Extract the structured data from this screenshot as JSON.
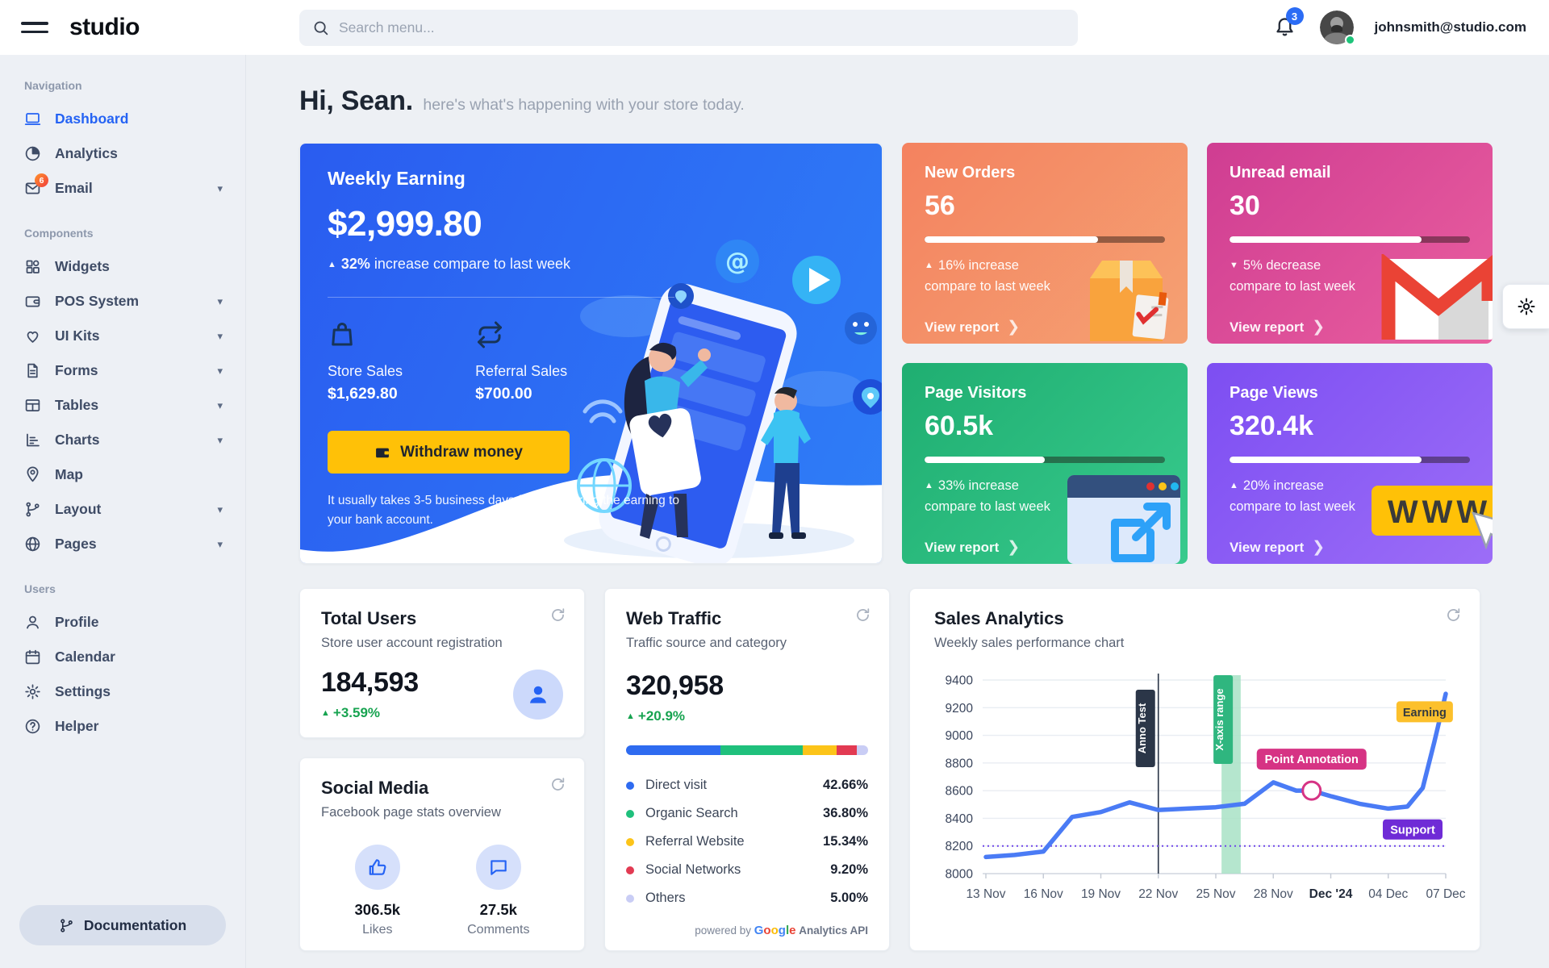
{
  "topbar": {
    "brand": "studio",
    "search_placeholder": "Search menu...",
    "notification_count": "3",
    "user_email": "johnsmith@studio.com"
  },
  "sidebar": {
    "sections": [
      {
        "label": "Navigation",
        "items": [
          {
            "label": "Dashboard",
            "icon": "laptop",
            "active": true
          },
          {
            "label": "Analytics",
            "icon": "pie"
          },
          {
            "label": "Email",
            "icon": "mail",
            "badge": "6",
            "caret": true
          }
        ]
      },
      {
        "label": "Components",
        "items": [
          {
            "label": "Widgets",
            "icon": "widgets"
          },
          {
            "label": "POS System",
            "icon": "wallet",
            "caret": true
          },
          {
            "label": "UI Kits",
            "icon": "heart",
            "caret": true
          },
          {
            "label": "Forms",
            "icon": "file",
            "caret": true
          },
          {
            "label": "Tables",
            "icon": "table",
            "caret": true
          },
          {
            "label": "Charts",
            "icon": "chart",
            "caret": true
          },
          {
            "label": "Map",
            "icon": "pin"
          },
          {
            "label": "Layout",
            "icon": "branch",
            "caret": true
          },
          {
            "label": "Pages",
            "icon": "globe",
            "caret": true
          }
        ]
      },
      {
        "label": "Users",
        "items": [
          {
            "label": "Profile",
            "icon": "user"
          },
          {
            "label": "Calendar",
            "icon": "calendar"
          },
          {
            "label": "Settings",
            "icon": "gear"
          },
          {
            "label": "Helper",
            "icon": "question"
          }
        ]
      }
    ],
    "documentation_label": "Documentation"
  },
  "page": {
    "greeting": "Hi, Sean.",
    "greeting_sub": "here's what's happening with your store today."
  },
  "weekly_earning": {
    "title": "Weekly Earning",
    "amount": "$2,999.80",
    "delta_arrow": "▲",
    "delta_pct": "32%",
    "delta_text": " increase compare to last week",
    "store_sales_label": "Store Sales",
    "store_sales_value": "$1,629.80",
    "referral_label": "Referral Sales",
    "referral_value": "$700.00",
    "button_label": "Withdraw money",
    "note": "It usually takes 3-5 business days for transferring the earning to your bank account.",
    "accent_color": "#2a5cf0"
  },
  "mini_cards": [
    {
      "title": "New Orders",
      "value": "56",
      "progress_pct": 72,
      "arrow": "▲",
      "delta_line1": "16% increase",
      "delta_line2": "compare to last week",
      "link_label": "View report",
      "illustration": "package",
      "gradient": [
        "#f4825f",
        "#f5a173"
      ]
    },
    {
      "title": "Unread email",
      "value": "30",
      "progress_pct": 80,
      "arrow": "▼",
      "delta_line1": "5% decrease",
      "delta_line2": "compare to last week",
      "link_label": "View report",
      "illustration": "gmail",
      "gradient": [
        "#cf3d92",
        "#ea5f9f"
      ]
    },
    {
      "title": "Page Visitors",
      "value": "60.5k",
      "progress_pct": 50,
      "arrow": "▲",
      "delta_line1": "33% increase",
      "delta_line2": "compare to last week",
      "link_label": "View report",
      "illustration": "browser",
      "gradient": [
        "#1fae71",
        "#38ca8d"
      ]
    },
    {
      "title": "Page Views",
      "value": "320.4k",
      "progress_pct": 80,
      "arrow": "▲",
      "delta_line1": "20% increase",
      "delta_line2": "compare to last week",
      "link_label": "View report",
      "illustration": "www",
      "gradient": [
        "#7d4ef2",
        "#9c6df7"
      ]
    }
  ],
  "total_users": {
    "title": "Total Users",
    "subtitle": "Store user account registration",
    "value": "184,593",
    "delta_arrow": "▲",
    "delta": "+3.59%"
  },
  "social_media": {
    "title": "Social Media",
    "subtitle": "Facebook page stats overview",
    "stats": [
      {
        "icon": "thumb",
        "value": "306.5k",
        "label": "Likes"
      },
      {
        "icon": "chat",
        "value": "27.5k",
        "label": "Comments"
      }
    ]
  },
  "web_traffic": {
    "title": "Web Traffic",
    "subtitle": "Traffic source and category",
    "value": "320,958",
    "delta_arrow": "▲",
    "delta": "+20.9%",
    "sources": [
      {
        "label": "Direct visit",
        "pct": "42.66%",
        "value": 42.66,
        "color": "#2e6bf0"
      },
      {
        "label": "Organic Search",
        "pct": "36.80%",
        "value": 36.8,
        "color": "#1fc07c"
      },
      {
        "label": "Referral Website",
        "pct": "15.34%",
        "value": 15.34,
        "color": "#fcc419"
      },
      {
        "label": "Social Networks",
        "pct": "9.20%",
        "value": 9.2,
        "color": "#e23a52"
      },
      {
        "label": "Others",
        "pct": "5.00%",
        "value": 5.0,
        "color": "#c9cdf5"
      }
    ],
    "footer_prefix": "powered by",
    "footer_brand_letters": [
      {
        "ch": "G",
        "color": "#4285F4"
      },
      {
        "ch": "o",
        "color": "#EA4335"
      },
      {
        "ch": "o",
        "color": "#FBBC05"
      },
      {
        "ch": "g",
        "color": "#4285F4"
      },
      {
        "ch": "l",
        "color": "#34A853"
      },
      {
        "ch": "e",
        "color": "#EA4335"
      }
    ],
    "footer_suffix": "Analytics API"
  },
  "sales_analytics": {
    "title": "Sales Analytics",
    "subtitle": "Weekly sales performance chart"
  },
  "chart_data": {
    "type": "line",
    "title": "Sales Analytics",
    "subtitle": "Weekly sales performance chart",
    "x_tick_labels": [
      "13 Nov",
      "16 Nov",
      "19 Nov",
      "22 Nov",
      "25 Nov",
      "28 Nov",
      "Dec '24",
      "04 Dec",
      "07 Dec"
    ],
    "bold_tick": "Dec '24",
    "x_domain": [
      0,
      24
    ],
    "x_tick_step": 3,
    "ylim": [
      8000,
      9400
    ],
    "y_ticks": [
      8000,
      8200,
      8400,
      8600,
      8800,
      9000,
      9200,
      9400
    ],
    "grid": true,
    "legend_position": "none",
    "series": [
      {
        "name": "Earning",
        "color": "#4a7bf5",
        "points": [
          [
            0,
            8120
          ],
          [
            1.5,
            8135
          ],
          [
            3,
            8160
          ],
          [
            4.5,
            8410
          ],
          [
            6,
            8445
          ],
          [
            7.5,
            8515
          ],
          [
            9,
            8460
          ],
          [
            10.5,
            8470
          ],
          [
            12,
            8480
          ],
          [
            13.5,
            8505
          ],
          [
            15,
            8660
          ],
          [
            16.2,
            8600
          ],
          [
            17,
            8600
          ],
          [
            18,
            8560
          ],
          [
            19.5,
            8505
          ],
          [
            21,
            8470
          ],
          [
            22,
            8485
          ],
          [
            22.8,
            8620
          ],
          [
            23.4,
            8950
          ],
          [
            24,
            9300
          ]
        ]
      }
    ],
    "annotations": {
      "vline": {
        "x": 9,
        "label": "Anno Test",
        "line_color": "#2b3648",
        "label_bg": "#2b3648",
        "label_color": "#ffffff"
      },
      "xrange": {
        "from": 12.3,
        "to": 13.3,
        "fill": "#a8e2c6",
        "label": "X-axis range",
        "label_bg": "#2fb67f",
        "label_color": "#ffffff"
      },
      "point": {
        "x": 17,
        "y": 8600,
        "label": "Point Annotation",
        "label_bg": "#d63384",
        "label_color": "#ffffff",
        "marker_stroke": "#d63384"
      },
      "hline": {
        "y": 8200,
        "label": "Support",
        "line_color": "#7048e8",
        "label_bg": "#6f2bd6",
        "label_color": "#ffffff"
      },
      "series_label": {
        "x": 22.9,
        "y": 9170,
        "label": "Earning",
        "label_bg": "#fcc02c",
        "label_color": "#343a40"
      }
    }
  }
}
